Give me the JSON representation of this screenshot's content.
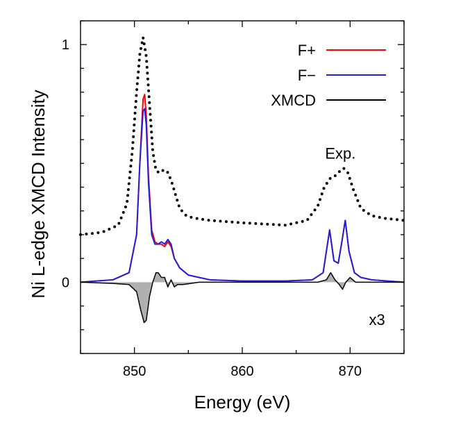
{
  "chart_data": {
    "type": "line",
    "xlabel": "Energy (eV)",
    "ylabel": "Ni L-edge XMCD Intensity",
    "xlim": [
      845,
      875
    ],
    "ylim": [
      -0.3,
      1.1
    ],
    "x_ticks": [
      850,
      860,
      870
    ],
    "x_tick_labels": [
      "850",
      "860",
      "870"
    ],
    "y_ticks": [
      0,
      1
    ],
    "y_tick_labels": [
      "0",
      "1"
    ],
    "grid": false,
    "legend_position": "top-right",
    "annotations": [
      {
        "text": "Exp.",
        "x": 869.1,
        "y": 0.52
      },
      {
        "text": "x3",
        "x": 872.5,
        "y": -0.18
      }
    ],
    "series": [
      {
        "name": "F+",
        "color": "#ff0000",
        "style": "solid",
        "x": [
          845,
          848,
          849.5,
          850.2,
          850.5,
          850.8,
          850.95,
          851.1,
          851.3,
          851.6,
          851.9,
          852.2,
          852.5,
          852.8,
          853.1,
          853.4,
          853.7,
          854.2,
          855,
          857,
          860,
          864,
          866.5,
          867.5,
          868.1,
          868.5,
          868.9,
          869.2,
          869.55,
          869.9,
          870.4,
          871,
          872,
          875
        ],
        "y": [
          0,
          0.01,
          0.04,
          0.2,
          0.5,
          0.77,
          0.79,
          0.7,
          0.45,
          0.22,
          0.17,
          0.16,
          0.16,
          0.15,
          0.17,
          0.15,
          0.1,
          0.06,
          0.03,
          0.01,
          0.005,
          0.005,
          0.01,
          0.04,
          0.22,
          0.09,
          0.08,
          0.16,
          0.26,
          0.13,
          0.04,
          0.02,
          0.01,
          0
        ]
      },
      {
        "name": "F−",
        "color": "#2020dd",
        "style": "solid",
        "x": [
          845,
          848,
          849.5,
          850.2,
          850.5,
          850.8,
          850.95,
          851.1,
          851.3,
          851.6,
          851.9,
          852.2,
          852.5,
          852.8,
          853.1,
          853.4,
          853.7,
          854.2,
          855,
          857,
          860,
          864,
          866.5,
          867.5,
          868.1,
          868.5,
          868.9,
          869.2,
          869.55,
          869.9,
          870.4,
          871,
          872,
          875
        ],
        "y": [
          0,
          0.01,
          0.04,
          0.2,
          0.5,
          0.72,
          0.73,
          0.66,
          0.42,
          0.2,
          0.16,
          0.16,
          0.17,
          0.16,
          0.18,
          0.16,
          0.1,
          0.06,
          0.03,
          0.01,
          0.005,
          0.005,
          0.01,
          0.04,
          0.22,
          0.09,
          0.08,
          0.16,
          0.26,
          0.13,
          0.04,
          0.02,
          0.01,
          0
        ]
      },
      {
        "name": "XMCD",
        "color": "#000000",
        "style": "solid",
        "fill": "#b0b0b0",
        "x": [
          845,
          848,
          849.5,
          850.2,
          850.6,
          850.9,
          851.1,
          851.4,
          851.7,
          852,
          852.2,
          852.5,
          852.8,
          853.1,
          853.4,
          853.7,
          854,
          854.5,
          856,
          860,
          864,
          867,
          867.8,
          868.2,
          868.6,
          869,
          869.3,
          869.6,
          870,
          870.5,
          871,
          872,
          875
        ],
        "y": [
          0,
          -0.005,
          -0.01,
          -0.04,
          -0.12,
          -0.17,
          -0.16,
          -0.06,
          0.0,
          0.04,
          0.04,
          0.02,
          0.02,
          -0.02,
          0.01,
          -0.02,
          -0.01,
          -0.01,
          0,
          0,
          0,
          0,
          0.01,
          0.04,
          0.01,
          -0.01,
          -0.03,
          0.0,
          0.02,
          0.0,
          0.0,
          0.0,
          0
        ]
      },
      {
        "name": "Exp.",
        "color": "#000000",
        "style": "dotted",
        "x": [
          845,
          847,
          848.5,
          849.3,
          849.8,
          850.2,
          850.5,
          850.8,
          851.1,
          851.4,
          851.7,
          852,
          852.3,
          852.6,
          853,
          853.4,
          853.8,
          854.2,
          854.8,
          855.5,
          857,
          860,
          864,
          866,
          867,
          867.6,
          868.2,
          868.7,
          869.1,
          869.4,
          869.8,
          870.3,
          871,
          872,
          873,
          875
        ],
        "y": [
          0.2,
          0.21,
          0.24,
          0.33,
          0.55,
          0.8,
          0.96,
          1.03,
          0.95,
          0.75,
          0.55,
          0.47,
          0.46,
          0.47,
          0.47,
          0.43,
          0.37,
          0.31,
          0.28,
          0.27,
          0.26,
          0.25,
          0.24,
          0.26,
          0.32,
          0.4,
          0.44,
          0.45,
          0.47,
          0.48,
          0.46,
          0.39,
          0.31,
          0.28,
          0.27,
          0.26
        ]
      }
    ]
  }
}
